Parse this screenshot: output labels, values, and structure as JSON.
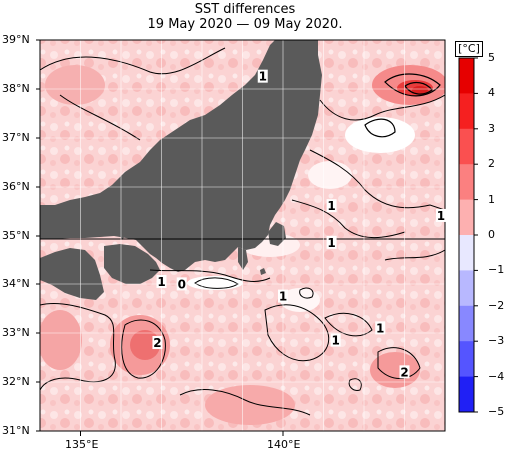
{
  "title": "SST differences",
  "subtitle": "19 May 2020 — 09 May 2020.",
  "unit": "[°C]",
  "map": {
    "lat_range": [
      31,
      39
    ],
    "lon_range": [
      134,
      144
    ],
    "lat_labels": [
      "39°N",
      "38°N",
      "37°N",
      "36°N",
      "35°N",
      "34°N",
      "33°N",
      "32°N",
      "31°N"
    ],
    "lon_labels": [
      "135°E",
      "140°E"
    ],
    "contour_labels": [
      {
        "text": "1",
        "lon": 139.5,
        "lat": 38.25
      },
      {
        "text": "1",
        "lon": 141.2,
        "lat": 35.6
      },
      {
        "text": "1",
        "lon": 143.9,
        "lat": 35.4
      },
      {
        "text": "1",
        "lon": 141.2,
        "lat": 34.85
      },
      {
        "text": "1",
        "lon": 137.0,
        "lat": 34.05
      },
      {
        "text": "0",
        "lon": 137.5,
        "lat": 34.0
      },
      {
        "text": "1",
        "lon": 140.0,
        "lat": 33.75
      },
      {
        "text": "1",
        "lon": 142.4,
        "lat": 33.1
      },
      {
        "text": "1",
        "lon": 141.3,
        "lat": 32.85
      },
      {
        "text": "2",
        "lon": 136.9,
        "lat": 32.8
      },
      {
        "text": "2",
        "lon": 143.0,
        "lat": 32.2
      }
    ]
  },
  "colorbar": {
    "ticks": [
      "5",
      "4",
      "3",
      "2",
      "1",
      "0",
      "−1",
      "−2",
      "−3",
      "−4",
      "−5"
    ],
    "colors": [
      "#e60000",
      "#f52020",
      "#fa5050",
      "#fb8080",
      "#fdb0b0",
      "#ffe0e0",
      "#e8e8ff",
      "#b8b8ff",
      "#8888ff",
      "#5555ff",
      "#2020f5"
    ]
  }
}
